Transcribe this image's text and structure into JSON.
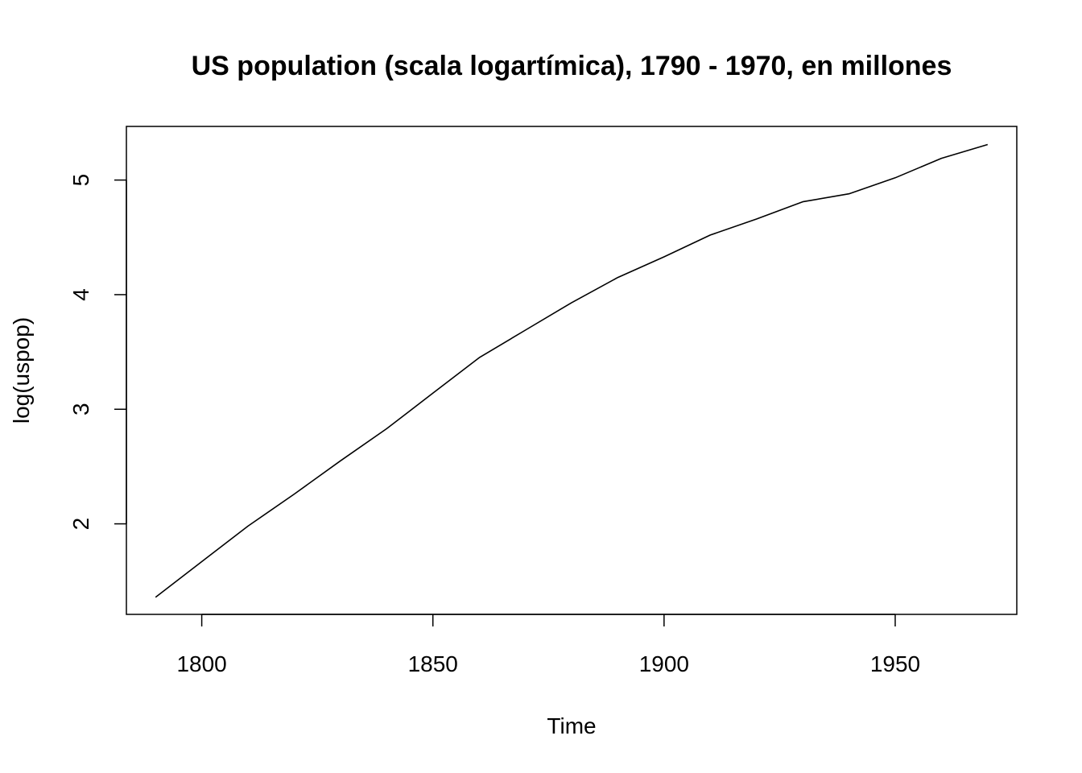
{
  "chart_data": {
    "type": "line",
    "title": "US population (scala logartímica), 1790 - 1970, en millones",
    "xlabel": "Time",
    "ylabel": "log(uspop)",
    "xlim": [
      1783.7,
      1976.3
    ],
    "ylim": [
      1.21,
      5.468
    ],
    "x_ticks": [
      1800,
      1850,
      1900,
      1950
    ],
    "y_ticks": [
      2,
      3,
      4,
      5
    ],
    "x_tick_labels": [
      "1800",
      "1850",
      "1900",
      "1950"
    ],
    "y_tick_labels": [
      "2",
      "3",
      "4",
      "5"
    ],
    "grid": false,
    "legend": "none",
    "line_color": "#000000",
    "series": [
      {
        "x": [
          1790,
          1800,
          1810,
          1820,
          1830,
          1840,
          1850,
          1860,
          1870,
          1880,
          1890,
          1900,
          1910,
          1920,
          1930,
          1940,
          1950,
          1960,
          1970
        ],
        "values": [
          1.36,
          1.67,
          1.98,
          2.26,
          2.55,
          2.83,
          3.14,
          3.45,
          3.69,
          3.93,
          4.15,
          4.33,
          4.52,
          4.66,
          4.81,
          4.88,
          5.02,
          5.19,
          5.31
        ]
      }
    ]
  }
}
